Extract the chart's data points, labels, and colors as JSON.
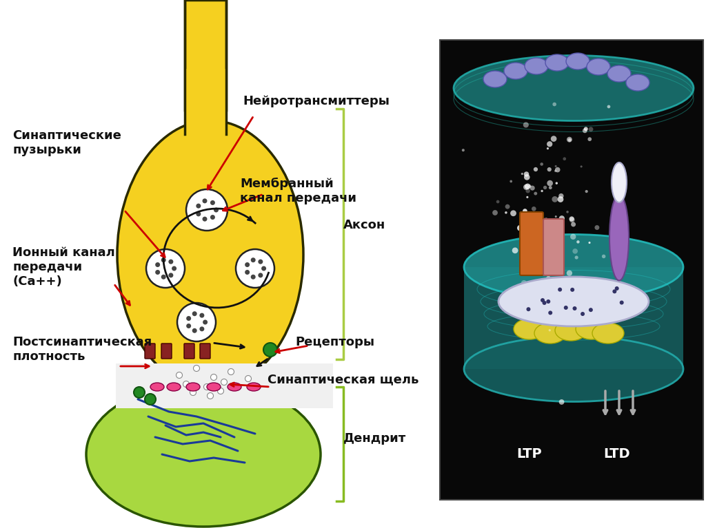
{
  "bg_color": "#ffffff",
  "axon_color": "#f5d020",
  "axon_border": "#2a2a00",
  "dendrite_color": "#a8d840",
  "dendrite_border": "#2a5500",
  "vesicle_fill": "#ffffff",
  "vesicle_border": "#222222",
  "dot_color": "#444444",
  "receptor_color": "#cc2244",
  "green_receptor_color": "#228822",
  "arrow_color": "#cc0000",
  "black_arrow_color": "#111111",
  "brace_color": "#aacc44",
  "text_color": "#111111",
  "labels": {
    "neurotransmitters": "Нейротрансмиттеры",
    "synaptic_vesicles": "Синаптические\nпузырьки",
    "membrane_channel": "Мембранный\nканал передачи",
    "ion_channel": "Ионный канал\nпередачи\n(Ca++)",
    "receptors": "Рецепторы",
    "postsynaptic_density": "Постсинаптическая\nплотность",
    "synaptic_cleft": "Синаптическая щель",
    "axon": "Аксон",
    "dendrite": "Дендрит"
  },
  "right_panel_bg": "#000000",
  "ltp_label": "LTP",
  "ltd_label": "LTD",
  "blue_lines": [
    [
      [
        215,
        255,
        295,
        340
      ],
      [
        605,
        620,
        615,
        635
      ]
    ],
    [
      [
        225,
        265,
        305,
        345
      ],
      [
        635,
        645,
        640,
        655
      ]
    ],
    [
      [
        235,
        275,
        310,
        355
      ],
      [
        660,
        670,
        665,
        672
      ]
    ],
    [
      [
        200,
        245,
        285,
        330,
        370
      ],
      [
        580,
        598,
        605,
        618,
        630
      ]
    ],
    [
      [
        240,
        270,
        295,
        320
      ],
      [
        618,
        632,
        628,
        635
      ]
    ]
  ]
}
